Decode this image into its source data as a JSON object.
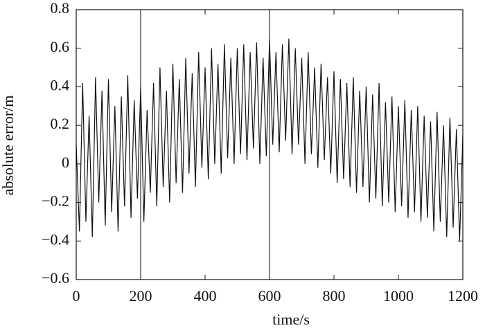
{
  "chart_data": {
    "type": "line",
    "xlabel": "time/s",
    "ylabel": "absolute error/m",
    "color": "#111111",
    "x": [
      0,
      10,
      20,
      30,
      40,
      50,
      60,
      70,
      80,
      90,
      100,
      110,
      120,
      130,
      140,
      150,
      160,
      170,
      180,
      190,
      200,
      210,
      220,
      230,
      240,
      250,
      260,
      270,
      280,
      290,
      300,
      310,
      320,
      330,
      340,
      350,
      360,
      370,
      380,
      390,
      400,
      410,
      420,
      430,
      440,
      450,
      460,
      470,
      480,
      490,
      500,
      510,
      520,
      530,
      540,
      550,
      560,
      570,
      580,
      590,
      600,
      610,
      620,
      630,
      640,
      650,
      660,
      670,
      680,
      690,
      700,
      710,
      720,
      730,
      740,
      750,
      760,
      770,
      780,
      790,
      800,
      810,
      820,
      830,
      840,
      850,
      860,
      870,
      880,
      890,
      900,
      910,
      920,
      930,
      940,
      950,
      960,
      970,
      980,
      990,
      1000,
      1010,
      1020,
      1030,
      1040,
      1050,
      1060,
      1070,
      1080,
      1090,
      1100,
      1110,
      1120,
      1130,
      1140,
      1150,
      1160,
      1170,
      1180,
      1190,
      1200
    ],
    "values": [
      0.1,
      -0.35,
      0.42,
      -0.3,
      0.25,
      -0.38,
      0.45,
      -0.2,
      0.38,
      -0.32,
      0.44,
      -0.25,
      0.3,
      -0.35,
      0.35,
      -0.22,
      0.46,
      -0.28,
      0.33,
      -0.18,
      0.4,
      -0.3,
      0.28,
      -0.15,
      0.42,
      -0.22,
      0.5,
      -0.12,
      0.38,
      -0.2,
      0.52,
      -0.1,
      0.44,
      -0.15,
      0.55,
      -0.05,
      0.47,
      -0.12,
      0.58,
      -0.02,
      0.5,
      -0.08,
      0.6,
      0.0,
      0.52,
      -0.05,
      0.62,
      0.03,
      0.55,
      0.0,
      0.6,
      0.05,
      0.62,
      0.02,
      0.58,
      0.08,
      0.63,
      0.0,
      0.55,
      0.04,
      0.65,
      0.1,
      0.58,
      0.06,
      0.62,
      0.12,
      0.65,
      0.05,
      0.6,
      0.1,
      0.55,
      0.0,
      0.58,
      0.05,
      0.5,
      -0.02,
      0.52,
      0.02,
      0.45,
      -0.05,
      0.48,
      -0.1,
      0.44,
      -0.08,
      0.42,
      -0.12,
      0.45,
      -0.15,
      0.38,
      -0.12,
      0.4,
      -0.2,
      0.36,
      -0.18,
      0.42,
      -0.22,
      0.32,
      -0.2,
      0.35,
      -0.25,
      0.3,
      -0.22,
      0.33,
      -0.28,
      0.28,
      -0.25,
      0.3,
      -0.3,
      0.25,
      -0.28,
      0.22,
      -0.35,
      0.27,
      -0.3,
      0.2,
      -0.38,
      0.24,
      -0.33,
      0.18,
      -0.4,
      0.15
    ],
    "vlines": [
      200,
      600
    ],
    "xlim": [
      0,
      1200
    ],
    "xticks": [
      0,
      200,
      400,
      600,
      800,
      1000,
      1200
    ],
    "ylim": [
      -0.6,
      0.8
    ],
    "yticks": [
      {
        "value": -0.6,
        "label": "−0.6"
      },
      {
        "value": -0.4,
        "label": "−0.4"
      },
      {
        "value": -0.2,
        "label": "−0.2"
      },
      0,
      0.2,
      0.4,
      0.6,
      0.8
    ]
  }
}
